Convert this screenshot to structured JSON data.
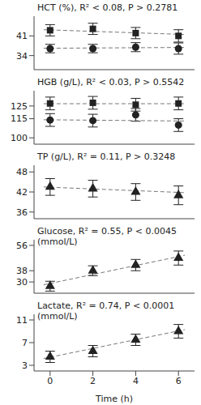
{
  "chart_data": [
    {
      "type": "scatter",
      "title": "HCT (%), R² < 0.08, P > 0.2781",
      "x": [
        0,
        2,
        4,
        6
      ],
      "xlim": [
        -0.75,
        6.75
      ],
      "ylim": [
        29,
        48
      ],
      "yticks": [
        34,
        41
      ],
      "tick_labels": "y",
      "series": [
        {
          "marker": "square",
          "color": "#222222",
          "line_style": "dashed",
          "values": [
            43,
            43.5,
            42,
            41
          ],
          "errors": [
            2,
            2,
            2,
            2.2
          ],
          "fit": {
            "x": [
              -0.3,
              6.3
            ],
            "y": [
              43.2,
              41.5
            ]
          }
        },
        {
          "marker": "circle",
          "color": "#222222",
          "line_style": "dashed",
          "values": [
            36.5,
            36.5,
            37,
            36.5
          ],
          "errors": [
            1.5,
            1.5,
            1.6,
            2
          ],
          "fit": {
            "x": [
              -0.3,
              6.3
            ],
            "y": [
              36.6,
              36.9
            ]
          }
        }
      ]
    },
    {
      "type": "scatter",
      "title": "HGB (g/L), R² < 0.03, P > 0.5542",
      "x": [
        0,
        2,
        4,
        6
      ],
      "xlim": [
        -0.75,
        6.75
      ],
      "ylim": [
        95,
        137
      ],
      "yticks": [
        100,
        115,
        125
      ],
      "tick_labels": "y",
      "series": [
        {
          "marker": "square",
          "color": "#222222",
          "line_style": "dashed",
          "values": [
            127,
            127.5,
            126,
            127
          ],
          "errors": [
            5,
            5,
            5,
            5
          ],
          "fit": {
            "x": [
              -0.3,
              6.3
            ],
            "y": [
              126.8,
              126.8
            ]
          }
        },
        {
          "marker": "circle",
          "color": "#222222",
          "line_style": "dashed",
          "values": [
            114,
            113.5,
            118,
            110
          ],
          "errors": [
            5,
            5,
            5,
            5
          ],
          "fit": {
            "x": [
              -0.3,
              6.3
            ],
            "y": [
              114.2,
              113.2
            ]
          }
        }
      ]
    },
    {
      "type": "scatter",
      "title": "TP (g/L), R² = 0.11, P > 0.3248",
      "x": [
        0,
        2,
        4,
        6
      ],
      "xlim": [
        -0.75,
        6.75
      ],
      "ylim": [
        34,
        50
      ],
      "yticks": [
        36,
        42,
        48
      ],
      "tick_labels": "y",
      "series": [
        {
          "marker": "triangle",
          "color": "#222222",
          "line_style": "dashed",
          "values": [
            43.5,
            43,
            42,
            41
          ],
          "errors": [
            2.5,
            2.5,
            2.5,
            2.8
          ],
          "fit": {
            "x": [
              -0.3,
              6.3
            ],
            "y": [
              43.5,
              41.8
            ]
          }
        }
      ]
    },
    {
      "type": "scatter",
      "title": "Glucose, R² = 0.55, P < 0.0045\n(mmol/L)",
      "x": [
        0,
        2,
        4,
        6
      ],
      "xlim": [
        -0.75,
        6.75
      ],
      "ylim": [
        22,
        60
      ],
      "yticks": [
        30,
        38,
        56
      ],
      "tick_labels": "y",
      "series": [
        {
          "marker": "triangle",
          "color": "#222222",
          "line_style": "dashed",
          "values": [
            27,
            38,
            42,
            47
          ],
          "errors": [
            3.5,
            3.5,
            4,
            5
          ],
          "fit": {
            "x": [
              -0.3,
              6.3
            ],
            "y": [
              28,
              49
            ]
          }
        }
      ]
    },
    {
      "type": "scatter",
      "title": "Lactate, R² = 0.74, P < 0.0001\n(mmol/L)",
      "x": [
        0,
        2,
        4,
        6
      ],
      "xlim": [
        -0.75,
        6.75
      ],
      "xticks": [
        0,
        2,
        4,
        6
      ],
      "x_label": "Time (h)",
      "ylim": [
        2,
        12
      ],
      "yticks": [
        3,
        7,
        11
      ],
      "series": [
        {
          "marker": "triangle",
          "color": "#222222",
          "line_style": "dashed",
          "values": [
            4.5,
            5.5,
            7.5,
            9
          ],
          "errors": [
            1,
            1,
            1,
            1.2
          ],
          "fit": {
            "x": [
              -0.3,
              6.3
            ],
            "y": [
              4.2,
              9.3
            ]
          }
        }
      ]
    }
  ]
}
